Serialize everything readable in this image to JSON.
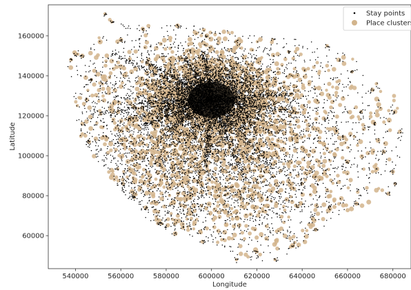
{
  "chart_data": {
    "type": "scatter",
    "xlabel": "Longitude",
    "ylabel": "Latitude",
    "xlim": [
      528000,
      688000
    ],
    "ylim": [
      43500,
      175500
    ],
    "x_ticks": [
      540000,
      560000,
      580000,
      600000,
      620000,
      640000,
      660000,
      680000
    ],
    "y_ticks": [
      60000,
      80000,
      100000,
      120000,
      140000,
      160000
    ],
    "x_tick_labels": [
      "540000",
      "560000",
      "580000",
      "600000",
      "620000",
      "640000",
      "660000",
      "680000"
    ],
    "y_tick_labels": [
      "60000",
      "80000",
      "100000",
      "120000",
      "140000",
      "160000"
    ],
    "grid": false,
    "legend_position": "top-right",
    "series": [
      {
        "name": "Stay points",
        "marker": "dot",
        "color": "#000000",
        "density_center": [
          600000,
          128000
        ],
        "regions": [
          {
            "center": [
              600000,
              128000
            ],
            "spread": [
              12000,
              9000
            ],
            "weight": 0.4
          },
          {
            "center": [
              590000,
              110000
            ],
            "spread": [
              28000,
              26000
            ],
            "weight": 0.35
          },
          {
            "center": [
              615000,
              100000
            ],
            "spread": [
              38000,
              32000
            ],
            "weight": 0.25
          }
        ]
      },
      {
        "name": "Place clusters",
        "marker": "circle",
        "color": "#d2b48c",
        "regions": [
          {
            "center": [
              600000,
              128000
            ],
            "spread": [
              16000,
              12000
            ],
            "weight": 0.35
          },
          {
            "center": [
              595000,
              108000
            ],
            "spread": [
              30000,
              27000
            ],
            "weight": 0.4
          },
          {
            "center": [
              620000,
              100000
            ],
            "spread": [
              40000,
              34000
            ],
            "weight": 0.25
          }
        ]
      }
    ],
    "visible_clusters": [
      {
        "x": 553000,
        "y": 171000
      },
      {
        "x": 556000,
        "y": 167000
      },
      {
        "x": 540000,
        "y": 151000
      },
      {
        "x": 538000,
        "y": 148000
      },
      {
        "x": 543000,
        "y": 150000
      },
      {
        "x": 547000,
        "y": 138000
      },
      {
        "x": 545000,
        "y": 128000
      },
      {
        "x": 543000,
        "y": 116000
      },
      {
        "x": 546000,
        "y": 107000
      },
      {
        "x": 561000,
        "y": 86000
      },
      {
        "x": 566000,
        "y": 79000
      },
      {
        "x": 571000,
        "y": 74000
      },
      {
        "x": 578000,
        "y": 66000
      },
      {
        "x": 584000,
        "y": 61000
      },
      {
        "x": 596000,
        "y": 57000
      },
      {
        "x": 611000,
        "y": 48000
      },
      {
        "x": 620000,
        "y": 52000
      },
      {
        "x": 628000,
        "y": 48000
      },
      {
        "x": 636000,
        "y": 55000
      },
      {
        "x": 646000,
        "y": 63000
      },
      {
        "x": 652000,
        "y": 74000
      },
      {
        "x": 664000,
        "y": 76000
      },
      {
        "x": 678000,
        "y": 81000
      },
      {
        "x": 681000,
        "y": 86000
      },
      {
        "x": 680000,
        "y": 92000
      },
      {
        "x": 676000,
        "y": 102000
      },
      {
        "x": 683000,
        "y": 112000
      },
      {
        "x": 681000,
        "y": 122000
      },
      {
        "x": 671000,
        "y": 133000
      },
      {
        "x": 662000,
        "y": 142000
      },
      {
        "x": 656000,
        "y": 148000
      },
      {
        "x": 651000,
        "y": 155000
      },
      {
        "x": 634000,
        "y": 152000
      },
      {
        "x": 627000,
        "y": 158000
      },
      {
        "x": 611000,
        "y": 157000
      },
      {
        "x": 598000,
        "y": 160000
      },
      {
        "x": 585000,
        "y": 165000
      },
      {
        "x": 570000,
        "y": 163000
      },
      {
        "x": 560000,
        "y": 158000
      },
      {
        "x": 666000,
        "y": 122000
      },
      {
        "x": 672000,
        "y": 116000
      },
      {
        "x": 655000,
        "y": 112000
      },
      {
        "x": 660000,
        "y": 97000
      },
      {
        "x": 650000,
        "y": 92000
      },
      {
        "x": 640000,
        "y": 86000
      }
    ]
  }
}
